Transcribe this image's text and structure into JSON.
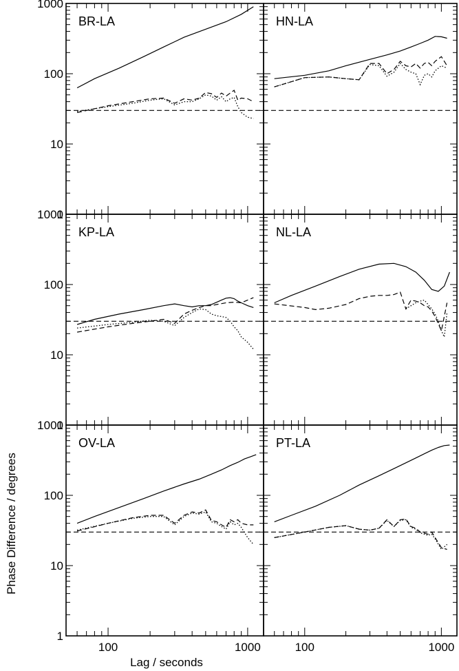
{
  "figure": {
    "ylabel": "Phase Difference / degrees",
    "xlabel": "Lag / seconds"
  },
  "chart_data": {
    "type": "line",
    "x_scale": "log",
    "y_scale": "log",
    "xlim": [
      50,
      1300
    ],
    "ylim": [
      1,
      1000
    ],
    "x_tick_labels": [
      "100",
      "1000"
    ],
    "y_tick_labels": [
      "1",
      "10",
      "100",
      "1000"
    ],
    "grid": false,
    "legend": "none",
    "reference_line_y": 30,
    "panels": [
      {
        "label": "BR-LA",
        "series": [
          {
            "style": "solid",
            "x": [
              60,
              80,
              120,
              180,
              250,
              350,
              500,
              700,
              900,
              1100
            ],
            "y": [
              63,
              85,
              120,
              175,
              240,
              330,
              430,
              550,
              700,
              900
            ]
          },
          {
            "style": "dashed",
            "x": [
              60,
              100,
              150,
              200,
              250,
              300,
              350,
              400,
              450,
              500,
              550,
              600,
              650,
              700,
              750,
              800,
              850,
              900,
              1000,
              1100
            ],
            "y": [
              28,
              35,
              40,
              44,
              45,
              38,
              44,
              42,
              45,
              54,
              52,
              46,
              53,
              48,
              53,
              58,
              42,
              45,
              44,
              40
            ]
          },
          {
            "style": "dotted",
            "x": [
              60,
              100,
              150,
              200,
              250,
              300,
              350,
              400,
              450,
              500,
              550,
              600,
              650,
              700,
              750,
              800,
              850,
              900,
              1000,
              1100
            ],
            "y": [
              29,
              34,
              38,
              42,
              44,
              36,
              40,
              40,
              44,
              50,
              48,
              42,
              47,
              40,
              44,
              46,
              34,
              28,
              24,
              23
            ]
          }
        ]
      },
      {
        "label": "HN-LA",
        "series": [
          {
            "style": "solid",
            "x": [
              60,
              100,
              150,
              200,
              300,
              400,
              500,
              600,
              700,
              800,
              900,
              1000,
              1100
            ],
            "y": [
              85,
              95,
              110,
              130,
              160,
              185,
              210,
              240,
              270,
              300,
              340,
              335,
              320
            ]
          },
          {
            "style": "dashed",
            "x": [
              60,
              100,
              150,
              200,
              250,
              300,
              350,
              400,
              450,
              500,
              550,
              600,
              650,
              700,
              750,
              800,
              850,
              900,
              1000,
              1100
            ],
            "y": [
              65,
              88,
              90,
              85,
              82,
              140,
              140,
              100,
              115,
              150,
              130,
              125,
              140,
              120,
              140,
              145,
              130,
              150,
              175,
              130
            ]
          },
          {
            "style": "dotted",
            "x": [
              60,
              100,
              150,
              200,
              250,
              300,
              350,
              400,
              450,
              500,
              550,
              600,
              650,
              700,
              750,
              800,
              850,
              900,
              1000,
              1100
            ],
            "y": [
              65,
              88,
              90,
              85,
              82,
              135,
              130,
              92,
              105,
              140,
              115,
              105,
              100,
              70,
              95,
              100,
              90,
              110,
              130,
              120
            ]
          }
        ]
      },
      {
        "label": "KP-LA",
        "series": [
          {
            "style": "solid",
            "x": [
              60,
              80,
              120,
              180,
              250,
              300,
              350,
              400,
              450,
              500,
              550,
              600,
              650,
              700,
              750,
              800,
              850,
              900,
              1000,
              1100
            ],
            "y": [
              27,
              32,
              38,
              44,
              50,
              53,
              50,
              48,
              50,
              50,
              52,
              56,
              60,
              64,
              65,
              63,
              58,
              55,
              50,
              47
            ]
          },
          {
            "style": "dashed",
            "x": [
              60,
              100,
              150,
              200,
              250,
              300,
              350,
              400,
              450,
              500,
              550,
              600,
              700,
              800,
              900,
              1000,
              1100
            ],
            "y": [
              21,
              25,
              28,
              30,
              32,
              28,
              38,
              43,
              47,
              50,
              50,
              52,
              55,
              56,
              55,
              60,
              65
            ]
          },
          {
            "style": "dotted",
            "x": [
              60,
              100,
              150,
              200,
              250,
              300,
              350,
              400,
              450,
              500,
              550,
              600,
              650,
              700,
              750,
              800,
              850,
              900,
              1000,
              1100
            ],
            "y": [
              24,
              27,
              29,
              31,
              30,
              26,
              34,
              40,
              45,
              44,
              38,
              36,
              35,
              34,
              30,
              25,
              22,
              18,
              15,
              12
            ]
          }
        ]
      },
      {
        "label": "NL-LA",
        "series": [
          {
            "style": "solid",
            "x": [
              60,
              80,
              120,
              180,
              250,
              350,
              450,
              550,
              650,
              750,
              850,
              950,
              1050,
              1150
            ],
            "y": [
              55,
              70,
              95,
              130,
              165,
              195,
              200,
              180,
              150,
              115,
              85,
              80,
              95,
              150
            ]
          },
          {
            "style": "dashed",
            "x": [
              60,
              100,
              120,
              150,
              200,
              250,
              300,
              350,
              400,
              450,
              500,
              550,
              600,
              650,
              700,
              750,
              800,
              850,
              900,
              1000,
              1100
            ],
            "y": [
              53,
              47,
              44,
              46,
              52,
              63,
              68,
              70,
              70,
              72,
              78,
              45,
              60,
              58,
              55,
              50,
              48,
              42,
              35,
              22,
              55
            ]
          },
          {
            "style": "dotted",
            "x": [
              550,
              600,
              650,
              700,
              750,
              800,
              850,
              900,
              950,
              1000,
              1050,
              1100
            ],
            "y": [
              45,
              50,
              55,
              58,
              60,
              52,
              45,
              38,
              30,
              22,
              18,
              40
            ]
          }
        ]
      },
      {
        "label": "OV-LA",
        "series": [
          {
            "style": "solid",
            "x": [
              60,
              80,
              120,
              180,
              250,
              350,
              450,
              550,
              650,
              750,
              850,
              950,
              1050,
              1150
            ],
            "y": [
              40,
              50,
              67,
              90,
              115,
              145,
              170,
              200,
              230,
              265,
              295,
              330,
              355,
              380
            ]
          },
          {
            "style": "dashed",
            "x": [
              60,
              100,
              150,
              200,
              250,
              300,
              350,
              400,
              450,
              500,
              550,
              600,
              650,
              700,
              750,
              800,
              850,
              900,
              1000,
              1100
            ],
            "y": [
              31,
              40,
              48,
              52,
              52,
              40,
              52,
              58,
              56,
              62,
              44,
              42,
              38,
              35,
              45,
              42,
              45,
              40,
              38,
              38
            ]
          },
          {
            "style": "dotted",
            "x": [
              60,
              100,
              150,
              200,
              250,
              300,
              350,
              400,
              450,
              500,
              550,
              600,
              650,
              700,
              750,
              800,
              850,
              900,
              1000,
              1100
            ],
            "y": [
              32,
              40,
              47,
              50,
              50,
              38,
              50,
              56,
              54,
              58,
              42,
              40,
              36,
              33,
              42,
              38,
              40,
              35,
              25,
              20
            ]
          }
        ]
      },
      {
        "label": "PT-LA",
        "series": [
          {
            "style": "solid",
            "x": [
              60,
              80,
              120,
              180,
              250,
              350,
              450,
              550,
              650,
              750,
              850,
              950,
              1050,
              1150
            ],
            "y": [
              42,
              52,
              70,
              100,
              140,
              190,
              240,
              290,
              340,
              390,
              440,
              480,
              510,
              520
            ]
          },
          {
            "style": "dashed",
            "x": [
              60,
              100,
              150,
              200,
              250,
              300,
              350,
              400,
              450,
              500,
              550,
              600,
              650,
              700,
              750,
              800,
              850,
              900,
              1000,
              1100
            ],
            "y": [
              25,
              30,
              35,
              37,
              33,
              32,
              34,
              45,
              36,
              45,
              46,
              36,
              34,
              30,
              29,
              28,
              30,
              25,
              18,
              17
            ]
          },
          {
            "style": "dotted",
            "x": [
              60,
              100,
              150,
              200,
              250,
              300,
              350,
              400,
              450,
              500,
              550,
              600,
              650,
              700,
              750,
              800,
              850,
              900,
              1000,
              1100
            ],
            "y": [
              25,
              30,
              35,
              37,
              33,
              32,
              34,
              44,
              36,
              44,
              45,
              35,
              33,
              29,
              28,
              27,
              28,
              24,
              17,
              20
            ]
          }
        ]
      }
    ]
  }
}
